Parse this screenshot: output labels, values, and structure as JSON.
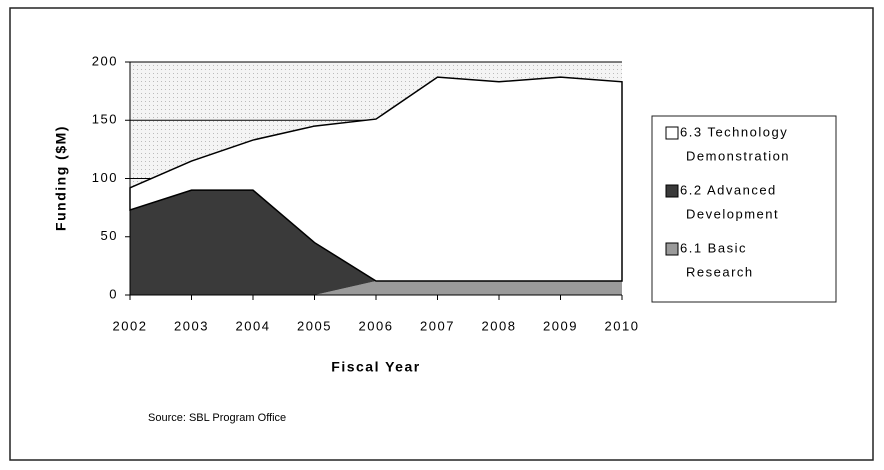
{
  "chart_data": {
    "type": "stacked_area",
    "x_label": "Fiscal Year",
    "y_label": "Funding ($M)",
    "source": "Source:  SBL Program Office",
    "categories": [
      "2002",
      "2003",
      "2004",
      "2005",
      "2006",
      "2007",
      "2008",
      "2009",
      "2010"
    ],
    "series": [
      {
        "name": "6.1 Basic Research",
        "color": "#9a9a9a",
        "values": [
          0,
          0,
          0,
          0,
          12,
          12,
          12,
          12,
          12
        ]
      },
      {
        "name": "6.2 Advanced Development",
        "color": "#3a3a3a",
        "values": [
          73,
          90,
          90,
          45,
          0,
          0,
          0,
          0,
          0
        ]
      },
      {
        "name": "6.3 Technology Demonstration",
        "color": "#ffffff",
        "values": [
          19,
          25,
          43,
          100,
          139,
          175,
          171,
          175,
          171
        ]
      }
    ],
    "legend_labels": [
      [
        "6.3 Technology",
        "Demonstration"
      ],
      [
        "6.2 Advanced",
        "Development"
      ],
      [
        "6.1 Basic",
        "Research"
      ]
    ],
    "ylim": [
      0,
      200
    ],
    "yticks": [
      0,
      50,
      100,
      150,
      200
    ],
    "grid": true
  }
}
